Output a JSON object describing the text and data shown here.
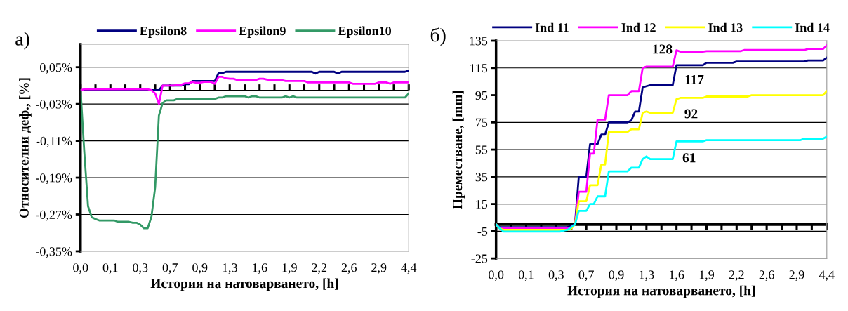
{
  "chart_data": [
    {
      "type": "line",
      "annotations": [
        "a)"
      ],
      "xlabel": "История на натоварването, [h]",
      "ylabel": "Относителни деф., [%]",
      "categories": [
        "0,0",
        null,
        null,
        null,
        null,
        null,
        null,
        null,
        "0,1",
        null,
        null,
        null,
        null,
        null,
        null,
        null,
        "0,3",
        null,
        null,
        null,
        null,
        null,
        null,
        null,
        "0,7",
        null,
        null,
        null,
        null,
        null,
        null,
        null,
        "0,9",
        null,
        null,
        null,
        null,
        null,
        null,
        null,
        "1,3",
        null,
        null,
        null,
        null,
        null,
        null,
        null,
        "1,6",
        null,
        null,
        null,
        null,
        null,
        null,
        null,
        "1,9",
        null,
        null,
        null,
        null,
        null,
        null,
        null,
        "2,2",
        null,
        null,
        null,
        null,
        null,
        null,
        null,
        "2,6",
        null,
        null,
        null,
        null,
        null,
        null,
        null,
        "2,9",
        null,
        null,
        null,
        null,
        null,
        null,
        null,
        "4,4"
      ],
      "series": [
        {
          "name": "Epsilon8",
          "color": "#000080",
          "values": [
            0,
            0,
            0,
            0,
            0,
            0,
            0,
            0,
            0,
            0,
            0,
            0,
            0,
            0,
            0,
            0,
            0,
            0,
            0,
            0,
            0,
            0,
            0.01,
            0.01,
            0.01,
            0.01,
            0.01,
            0.01,
            0.013,
            0.013,
            0.02,
            0.02,
            0.02,
            0.02,
            0.02,
            0.02,
            0.02,
            0.037,
            0.037,
            0.04,
            0.04,
            0.04,
            0.04,
            0.04,
            0.04,
            0.04,
            0.04,
            0.04,
            0.04,
            0.04,
            0.04,
            0.04,
            0.04,
            0.04,
            0.04,
            0.04,
            0.04,
            0.04,
            0.04,
            0.04,
            0.04,
            0.04,
            0.04,
            0.036,
            0.04,
            0.04,
            0.04,
            0.04,
            0.04,
            0.036,
            0.04,
            0.04,
            0.04,
            0.04,
            0.04,
            0.04,
            0.04,
            0.04,
            0.04,
            0.04,
            0.04,
            0.04,
            0.04,
            0.04,
            0.04,
            0.04,
            0.04,
            0.04,
            0.043
          ]
        },
        {
          "name": "Epsilon9",
          "color": "#ff00ff",
          "values": [
            0,
            0.002,
            0.002,
            0.002,
            0.002,
            0.002,
            0.002,
            0.002,
            0.002,
            0.002,
            0.002,
            0.002,
            0.002,
            0.002,
            0.002,
            0.002,
            0.002,
            0.002,
            0.002,
            0,
            -0.007,
            -0.03,
            0.01,
            0.01,
            0.01,
            0.01,
            0.012,
            0.012,
            0.015,
            0.015,
            0.018,
            0.016,
            0.016,
            0.018,
            0.018,
            0.018,
            0.014,
            0.029,
            0.029,
            0.026,
            0.025,
            0.025,
            0.022,
            0.022,
            0.022,
            0.022,
            0.022,
            0.022,
            0.025,
            0.025,
            0.023,
            0.022,
            0.022,
            0.022,
            0.022,
            0.02,
            0.02,
            0.02,
            0.02,
            0.02,
            0.02,
            0.017,
            0.017,
            0.017,
            0.017,
            0.017,
            0.017,
            0.017,
            0.017,
            0.017,
            0.017,
            0.017,
            0.017,
            0.014,
            0.014,
            0.014,
            0.014,
            0.014,
            0.014,
            0.014,
            0.017,
            0.017,
            0.017,
            0.014,
            0.017,
            0.017,
            0.017,
            0.017,
            0.017
          ]
        },
        {
          "name": "Epsilon10",
          "color": "#339966",
          "values": [
            0,
            -0.134,
            -0.252,
            -0.276,
            -0.28,
            -0.283,
            -0.283,
            -0.283,
            -0.283,
            -0.283,
            -0.286,
            -0.286,
            -0.286,
            -0.286,
            -0.288,
            -0.288,
            -0.292,
            -0.3,
            -0.3,
            -0.275,
            -0.211,
            -0.055,
            -0.028,
            -0.022,
            -0.022,
            -0.022,
            -0.019,
            -0.019,
            -0.019,
            -0.019,
            -0.019,
            -0.019,
            -0.019,
            -0.019,
            -0.019,
            -0.019,
            -0.019,
            -0.016,
            -0.016,
            -0.013,
            -0.013,
            -0.013,
            -0.013,
            -0.013,
            -0.013,
            -0.016,
            -0.013,
            -0.013,
            -0.016,
            -0.016,
            -0.016,
            -0.016,
            -0.016,
            -0.016,
            -0.016,
            -0.013,
            -0.016,
            -0.013,
            -0.016,
            -0.016,
            -0.016,
            -0.016,
            -0.016,
            -0.016,
            -0.016,
            -0.016,
            -0.016,
            -0.016,
            -0.016,
            -0.016,
            -0.016,
            -0.016,
            -0.016,
            -0.016,
            -0.016,
            -0.016,
            -0.016,
            -0.016,
            -0.016,
            -0.016,
            -0.016,
            -0.016,
            -0.016,
            -0.016,
            -0.016,
            -0.016,
            -0.016,
            -0.016,
            -0.007
          ]
        }
      ],
      "ylim": [
        -0.35,
        0.1
      ],
      "yticks": [
        {
          "value": -0.35,
          "label": "-0,35%"
        },
        {
          "value": -0.27,
          "label": "-0,27%"
        },
        {
          "value": -0.19,
          "label": "-0,19%"
        },
        {
          "value": -0.11,
          "label": "-0,11%"
        },
        {
          "value": -0.03,
          "label": "-0,03%"
        },
        {
          "value": 0.05,
          "label": "0,05%"
        }
      ],
      "grid": "y",
      "legend": "top",
      "marker": "none",
      "line_style": "solid"
    },
    {
      "type": "line",
      "annotations": [
        "б)"
      ],
      "xlabel": "История на натоварването, [h]",
      "ylabel": "Преместване, [mm]",
      "categories": [
        "0,0",
        null,
        null,
        null,
        null,
        null,
        null,
        null,
        "0,1",
        null,
        null,
        null,
        null,
        null,
        null,
        null,
        "0,3",
        null,
        null,
        null,
        null,
        null,
        null,
        null,
        "0,7",
        null,
        null,
        null,
        null,
        null,
        null,
        null,
        "0,9",
        null,
        null,
        null,
        null,
        null,
        null,
        null,
        "1,3",
        null,
        null,
        null,
        null,
        null,
        null,
        null,
        "1,6",
        null,
        null,
        null,
        null,
        null,
        null,
        null,
        "1,9",
        null,
        null,
        null,
        null,
        null,
        null,
        null,
        "2,2",
        null,
        null,
        null,
        null,
        null,
        null,
        null,
        "2,6",
        null,
        null,
        null,
        null,
        null,
        null,
        null,
        "2,9",
        null,
        null,
        null,
        null,
        null,
        null,
        null,
        "4,4"
      ],
      "series": [
        {
          "name": "Ind 11",
          "color": "#000080",
          "values": [
            0,
            -2,
            -2,
            -2,
            -2,
            -2,
            -2,
            -2,
            -2,
            -2,
            -2,
            -2,
            -2,
            -2,
            -2,
            -2,
            -2,
            -2,
            -2,
            -2,
            -1,
            0,
            35,
            35,
            35,
            59,
            59,
            59,
            66,
            66,
            75,
            75,
            75,
            75,
            75,
            75,
            76.5,
            83,
            83,
            100.7,
            101.6,
            102.4,
            102.4,
            102.4,
            102.4,
            102.4,
            102.4,
            102.4,
            117,
            117,
            117,
            117,
            117,
            117,
            117,
            117,
            118.8,
            118.8,
            118.8,
            118.8,
            118.8,
            118.8,
            118.8,
            118.8,
            119.7,
            119.7,
            119.7,
            119.7,
            119.7,
            119.7,
            119.7,
            119.7,
            119.7,
            119.7,
            119.7,
            119.7,
            119.7,
            119.7,
            119.7,
            119.7,
            119.7,
            119.7,
            119.7,
            120.5,
            120.5,
            120.5,
            120.5,
            120.5,
            122.6
          ],
          "value_labels": [
            null,
            null,
            null,
            null,
            null,
            null,
            null,
            null,
            null,
            null,
            null,
            null,
            null,
            null,
            null,
            null,
            null,
            null,
            null,
            null,
            null,
            null,
            null,
            null,
            null,
            null,
            null,
            null,
            null,
            null,
            null,
            null,
            null,
            null,
            null,
            null,
            null,
            null,
            null,
            null,
            null,
            null,
            null,
            null,
            null,
            null,
            null,
            null,
            "117",
            null,
            null,
            null,
            null,
            null,
            null,
            null,
            null,
            null,
            null,
            null,
            null,
            null,
            null,
            null,
            null,
            null,
            null,
            null,
            null,
            null,
            null,
            null,
            null,
            null,
            null,
            null,
            null,
            null,
            null,
            null,
            null,
            null,
            null,
            null,
            null,
            null,
            null,
            null,
            null
          ]
        },
        {
          "name": "Ind 12",
          "color": "#ff00ff",
          "values": [
            0,
            -3,
            -3,
            -3,
            -3,
            -3,
            -3,
            -3,
            -3,
            -3,
            -3,
            -3,
            -3,
            -3,
            -3,
            -3,
            -3,
            -3,
            -3,
            -3,
            -2,
            0,
            24,
            24,
            24,
            52,
            52,
            77,
            77,
            77,
            95,
            95,
            95,
            95,
            95,
            95,
            98,
            98,
            98,
            115,
            116,
            116,
            116,
            116,
            116,
            116,
            116,
            116,
            128,
            127,
            127,
            127,
            127,
            127,
            127,
            127,
            127.3,
            127.3,
            127.3,
            127.3,
            127.3,
            127.3,
            127.3,
            127.3,
            127.3,
            127.3,
            128.2,
            128.2,
            128.2,
            128.2,
            128.2,
            128.2,
            128.2,
            128.2,
            128.2,
            128.2,
            128.2,
            128.2,
            128.2,
            128.2,
            128.2,
            128.2,
            128.2,
            129,
            129,
            129,
            129,
            129,
            131.6
          ],
          "value_labels": [
            null,
            null,
            null,
            null,
            null,
            null,
            null,
            null,
            null,
            null,
            null,
            null,
            null,
            null,
            null,
            null,
            null,
            null,
            null,
            null,
            null,
            null,
            null,
            null,
            null,
            null,
            null,
            null,
            null,
            null,
            null,
            null,
            null,
            null,
            null,
            null,
            null,
            null,
            null,
            null,
            null,
            null,
            null,
            null,
            null,
            null,
            null,
            null,
            "128",
            null,
            null,
            null,
            null,
            null,
            null,
            null,
            null,
            null,
            null,
            null,
            null,
            null,
            null,
            null,
            null,
            null,
            null,
            null,
            null,
            null,
            null,
            null,
            null,
            null,
            null,
            null,
            null,
            null,
            null,
            null,
            null,
            null,
            null,
            null,
            null,
            null,
            null,
            null,
            null
          ]
        },
        {
          "name": "Ind 13",
          "color": "#ffff00",
          "values": [
            0,
            -3,
            -4,
            -4,
            -4,
            -4,
            -4,
            -4,
            -4,
            -4,
            -4,
            -4,
            -4,
            -4,
            -4,
            -4,
            -4,
            -4,
            -4,
            -4,
            -3,
            0,
            17,
            17,
            17,
            28.8,
            28.8,
            28.8,
            44,
            44,
            68,
            68,
            68,
            68,
            68,
            68,
            70,
            70,
            70,
            82,
            83,
            82,
            82,
            82,
            82,
            82,
            82,
            82,
            92,
            93,
            93,
            93,
            93,
            93,
            93,
            93,
            94,
            94,
            94,
            94,
            94,
            94,
            94,
            94,
            94,
            94,
            94,
            94,
            95,
            95,
            95,
            95,
            95,
            95,
            95,
            95,
            95,
            95,
            95,
            95,
            95,
            95,
            95,
            95,
            95,
            95,
            95,
            95,
            98
          ],
          "value_labels": [
            null,
            null,
            null,
            null,
            null,
            null,
            null,
            null,
            null,
            null,
            null,
            null,
            null,
            null,
            null,
            null,
            null,
            null,
            null,
            null,
            null,
            null,
            null,
            null,
            null,
            null,
            null,
            null,
            null,
            null,
            null,
            null,
            null,
            null,
            null,
            null,
            null,
            null,
            null,
            null,
            null,
            null,
            null,
            null,
            null,
            null,
            null,
            null,
            "92",
            null,
            null,
            null,
            null,
            null,
            null,
            null,
            null,
            null,
            null,
            null,
            null,
            null,
            null,
            null,
            null,
            null,
            null,
            null,
            null,
            null,
            null,
            null,
            null,
            null,
            null,
            null,
            null,
            null,
            null,
            null,
            null,
            null,
            null,
            null,
            null,
            null,
            null,
            null,
            null
          ]
        },
        {
          "name": "Ind 14",
          "color": "#00ffff",
          "values": [
            0,
            -3,
            -5.3,
            -5.3,
            -5.3,
            -5.3,
            -5.3,
            -5.3,
            -5.3,
            -5.3,
            -5.3,
            -5.3,
            -5.3,
            -5.3,
            -5.3,
            -5.3,
            -5.3,
            -5.3,
            -4.5,
            -4,
            -2,
            0,
            10,
            10,
            10,
            15,
            15,
            20.6,
            20.6,
            20.6,
            39,
            39,
            39,
            39,
            39,
            39,
            41.7,
            41.7,
            41.7,
            48,
            50,
            48,
            48,
            48,
            48,
            48,
            48,
            48,
            61,
            61,
            61,
            61,
            61,
            61,
            61,
            61,
            62,
            62,
            62,
            62,
            62,
            62,
            62,
            62,
            62,
            62,
            62,
            62,
            62,
            62,
            62,
            62,
            62,
            62,
            62,
            62,
            62,
            62,
            62,
            62,
            62,
            62,
            63,
            63,
            63,
            63,
            63,
            63,
            64.5
          ],
          "value_labels": [
            null,
            null,
            null,
            null,
            null,
            null,
            null,
            null,
            null,
            null,
            null,
            null,
            null,
            null,
            null,
            null,
            null,
            null,
            null,
            null,
            null,
            null,
            null,
            null,
            null,
            null,
            null,
            null,
            null,
            null,
            null,
            null,
            null,
            null,
            null,
            null,
            null,
            null,
            null,
            null,
            null,
            null,
            null,
            null,
            null,
            null,
            null,
            null,
            "61",
            null,
            null,
            null,
            null,
            null,
            null,
            null,
            null,
            null,
            null,
            null,
            null,
            null,
            null,
            null,
            null,
            null,
            null,
            null,
            null,
            null,
            null,
            null,
            null,
            null,
            null,
            null,
            null,
            null,
            null,
            null,
            null,
            null,
            null,
            null,
            null,
            null,
            null,
            null,
            null
          ]
        }
      ],
      "ylim": [
        -25,
        135
      ],
      "yticks": [
        -25,
        -5,
        15,
        35,
        55,
        75,
        95,
        115,
        135
      ],
      "grid": "y",
      "legend": "top",
      "marker": "none",
      "line_style": "solid"
    }
  ]
}
